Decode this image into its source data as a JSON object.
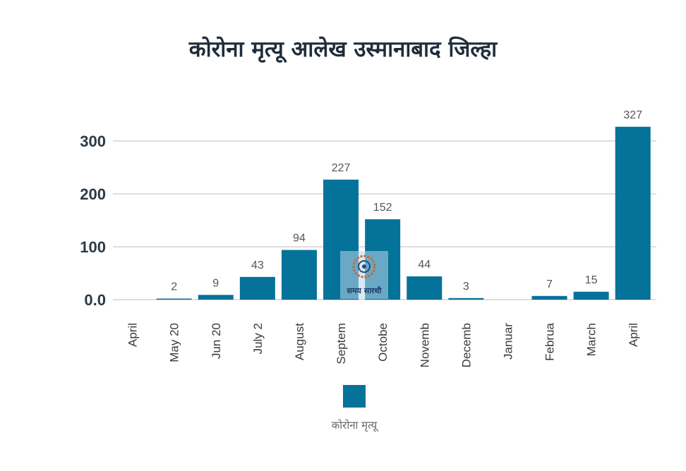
{
  "chart_data": {
    "type": "bar",
    "title": "कोरोना मृत्यू आलेख उस्मानाबाद जिल्हा",
    "categories": [
      "April",
      "May 20",
      "Jun 20",
      "July 2",
      "August",
      "Septem",
      "Octobe",
      "Novemb",
      "Decemb",
      "Januar",
      "Februa",
      "March",
      "April"
    ],
    "series": [
      {
        "name": "कोरोना मृत्यू",
        "values": [
          0,
          2,
          9,
          43,
          94,
          227,
          152,
          44,
          3,
          0,
          7,
          15,
          327
        ]
      }
    ],
    "data_labels": [
      "",
      "2",
      "9",
      "43",
      "94",
      "227",
      "152",
      "44",
      "3",
      "",
      "7",
      "15",
      "327"
    ],
    "yticks": [
      0,
      100,
      200,
      300
    ],
    "ytick_labels": [
      "0.0",
      "100",
      "200",
      "300"
    ],
    "ylim": [
      0,
      327
    ],
    "grid": true,
    "legend_position": "bottom",
    "bar_color": "#05729a"
  },
  "watermark": {
    "text": "समय सारथी"
  }
}
